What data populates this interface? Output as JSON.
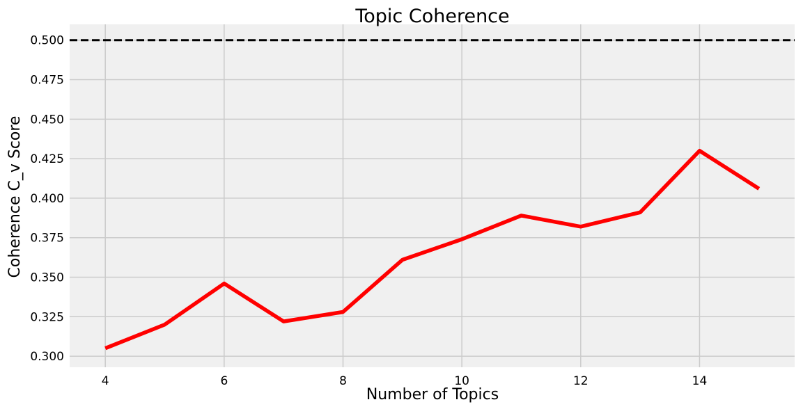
{
  "chart_data": {
    "type": "line",
    "title": "Topic Coherence",
    "xlabel": "Number of Topics",
    "ylabel": "Coherence C_v Score",
    "xlim": [
      3.4,
      15.6
    ],
    "ylim": [
      0.293,
      0.51
    ],
    "xticks": [
      4,
      6,
      8,
      10,
      12,
      14
    ],
    "yticks": [
      0.3,
      0.325,
      0.35,
      0.375,
      0.4,
      0.425,
      0.45,
      0.475,
      0.5
    ],
    "xtick_labels": [
      "4",
      "6",
      "8",
      "10",
      "12",
      "14"
    ],
    "ytick_labels": [
      "0.300",
      "0.325",
      "0.350",
      "0.375",
      "0.400",
      "0.425",
      "0.450",
      "0.475",
      "0.500"
    ],
    "grid": true,
    "legend": "none",
    "reference_line": {
      "y": 0.5,
      "style": "dashed",
      "color": "#000000"
    },
    "series": [
      {
        "color": "#ff0000",
        "x": [
          4,
          5,
          6,
          7,
          8,
          9,
          10,
          11,
          12,
          13,
          14,
          15
        ],
        "y": [
          0.305,
          0.32,
          0.346,
          0.322,
          0.328,
          0.361,
          0.374,
          0.389,
          0.382,
          0.391,
          0.43,
          0.406
        ]
      }
    ]
  },
  "colors": {
    "plot_background": "#f0f0f0",
    "grid": "#cbcbcb",
    "line": "#ff0000",
    "reference_line": "#000000"
  }
}
